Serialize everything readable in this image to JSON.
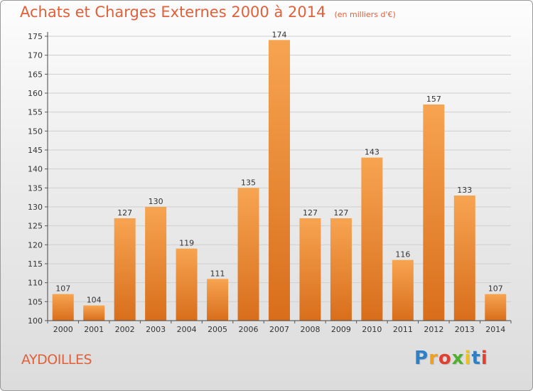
{
  "title": "Achats et Charges Externes 2000 à 2014",
  "subtitle": "(en milliers d'€)",
  "commune": "AYDOILLES",
  "logo": {
    "text": "Proxiti",
    "letters": [
      "P",
      "r",
      "o",
      "x",
      "i",
      "t",
      "i"
    ],
    "colors": [
      "#2f7fc4",
      "#f0a020",
      "#e04030",
      "#50b030",
      "#f0c020",
      "#2f7fc4",
      "#e04030"
    ]
  },
  "colors": {
    "bar_top": "#f7a451",
    "bar_bottom": "#d86e1c",
    "title": "#e0603a",
    "axis": "#444444"
  },
  "chart_data": {
    "type": "bar",
    "categories": [
      "2000",
      "2001",
      "2002",
      "2003",
      "2004",
      "2005",
      "2006",
      "2007",
      "2008",
      "2009",
      "2010",
      "2011",
      "2012",
      "2013",
      "2014"
    ],
    "values": [
      107,
      104,
      127,
      130,
      119,
      111,
      135,
      174,
      127,
      127,
      143,
      116,
      157,
      133,
      107
    ],
    "ylim": [
      100,
      175
    ],
    "yticks": [
      100,
      105,
      110,
      115,
      120,
      125,
      130,
      135,
      140,
      145,
      150,
      155,
      160,
      165,
      170,
      175
    ],
    "grid": true,
    "legend": "none"
  }
}
